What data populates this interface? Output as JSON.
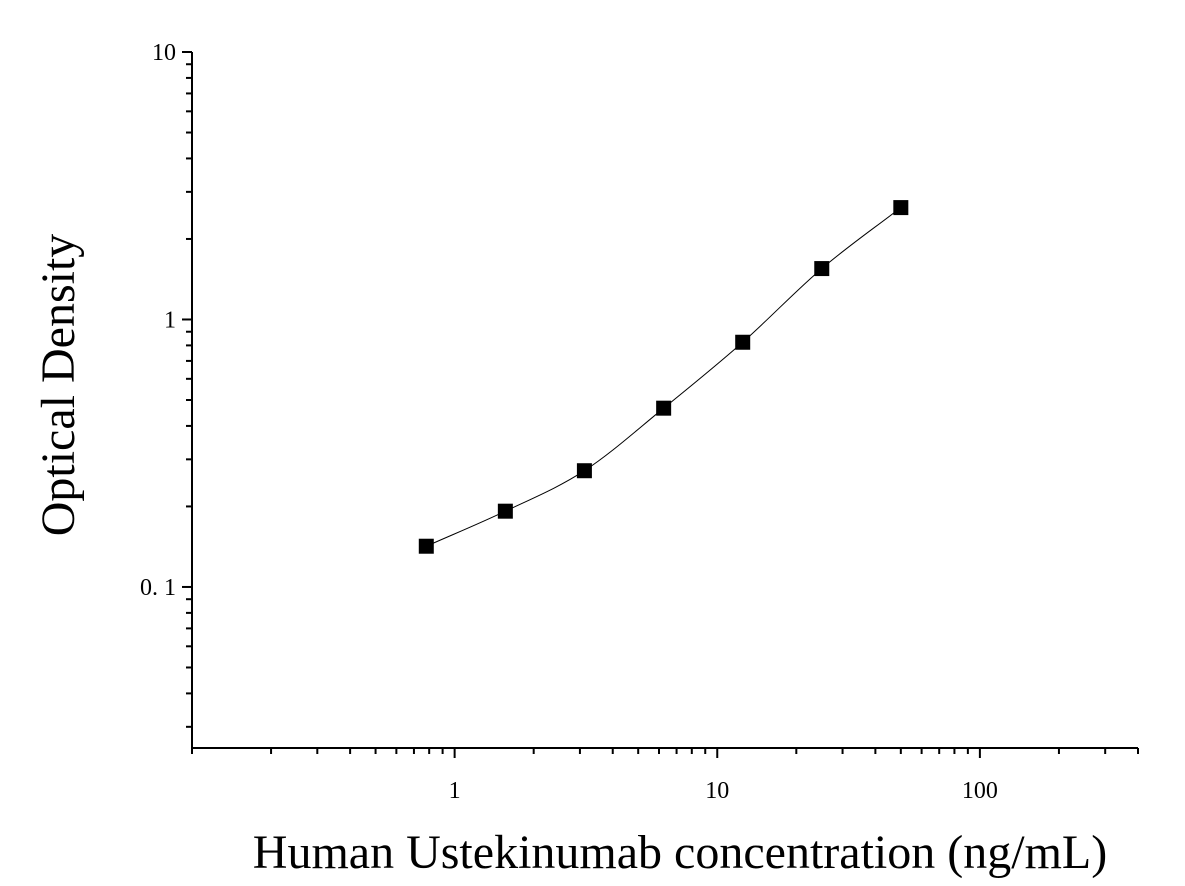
{
  "chart_data": {
    "type": "scatter",
    "title": "",
    "xlabel": "Human Ustekinumab concentration (ng/mL)",
    "ylabel": "Optical Density",
    "x_scale": "log",
    "y_scale": "log",
    "xlim": [
      0.1,
      400
    ],
    "ylim": [
      0.025,
      10
    ],
    "x_ticks": [
      {
        "value": 1,
        "label": "1"
      },
      {
        "value": 10,
        "label": "10"
      },
      {
        "value": 100,
        "label": "100"
      }
    ],
    "y_ticks": [
      {
        "value": 0.1,
        "label": "0. 1"
      },
      {
        "value": 1,
        "label": "1"
      },
      {
        "value": 10,
        "label": "10"
      }
    ],
    "grid": false,
    "legend": "none",
    "series": [
      {
        "marker": "square",
        "color": "#000000",
        "fit_line": true,
        "x": [
          0.78,
          1.56,
          3.12,
          6.25,
          12.5,
          25,
          50
        ],
        "y": [
          0.142,
          0.192,
          0.272,
          0.466,
          0.822,
          1.55,
          2.62
        ]
      }
    ]
  }
}
